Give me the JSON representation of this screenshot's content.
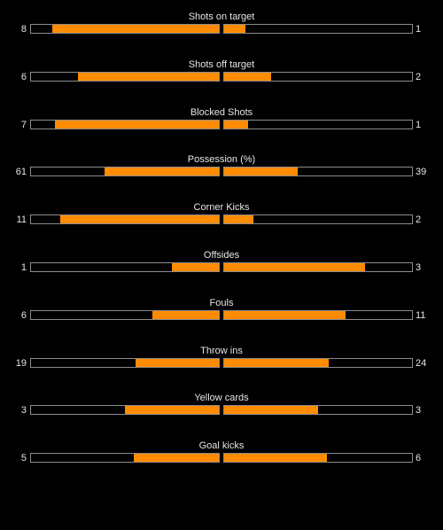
{
  "colors": {
    "background": "#000000",
    "bar_fill": "#ff8c00",
    "bar_border": "#8c8c8c",
    "text": "#e6e6e6"
  },
  "stats": [
    {
      "name": "Shots on target",
      "home": "8",
      "away": "1",
      "home_fraction": 0.889,
      "away_fraction": 0.111
    },
    {
      "name": "Shots off target",
      "home": "6",
      "away": "2",
      "home_fraction": 0.75,
      "away_fraction": 0.25
    },
    {
      "name": "Blocked Shots",
      "home": "7",
      "away": "1",
      "home_fraction": 0.875,
      "away_fraction": 0.125
    },
    {
      "name": "Possession (%)",
      "home": "61",
      "away": "39",
      "home_fraction": 0.61,
      "away_fraction": 0.39
    },
    {
      "name": "Corner Kicks",
      "home": "11",
      "away": "2",
      "home_fraction": 0.846,
      "away_fraction": 0.154
    },
    {
      "name": "Offsides",
      "home": "1",
      "away": "3",
      "home_fraction": 0.25,
      "away_fraction": 0.75
    },
    {
      "name": "Fouls",
      "home": "6",
      "away": "11",
      "home_fraction": 0.353,
      "away_fraction": 0.647
    },
    {
      "name": "Throw ins",
      "home": "19",
      "away": "24",
      "home_fraction": 0.442,
      "away_fraction": 0.558
    },
    {
      "name": "Yellow cards",
      "home": "3",
      "away": "3",
      "home_fraction": 0.5,
      "away_fraction": 0.5
    },
    {
      "name": "Goal kicks",
      "home": "5",
      "away": "6",
      "home_fraction": 0.455,
      "away_fraction": 0.545
    }
  ]
}
